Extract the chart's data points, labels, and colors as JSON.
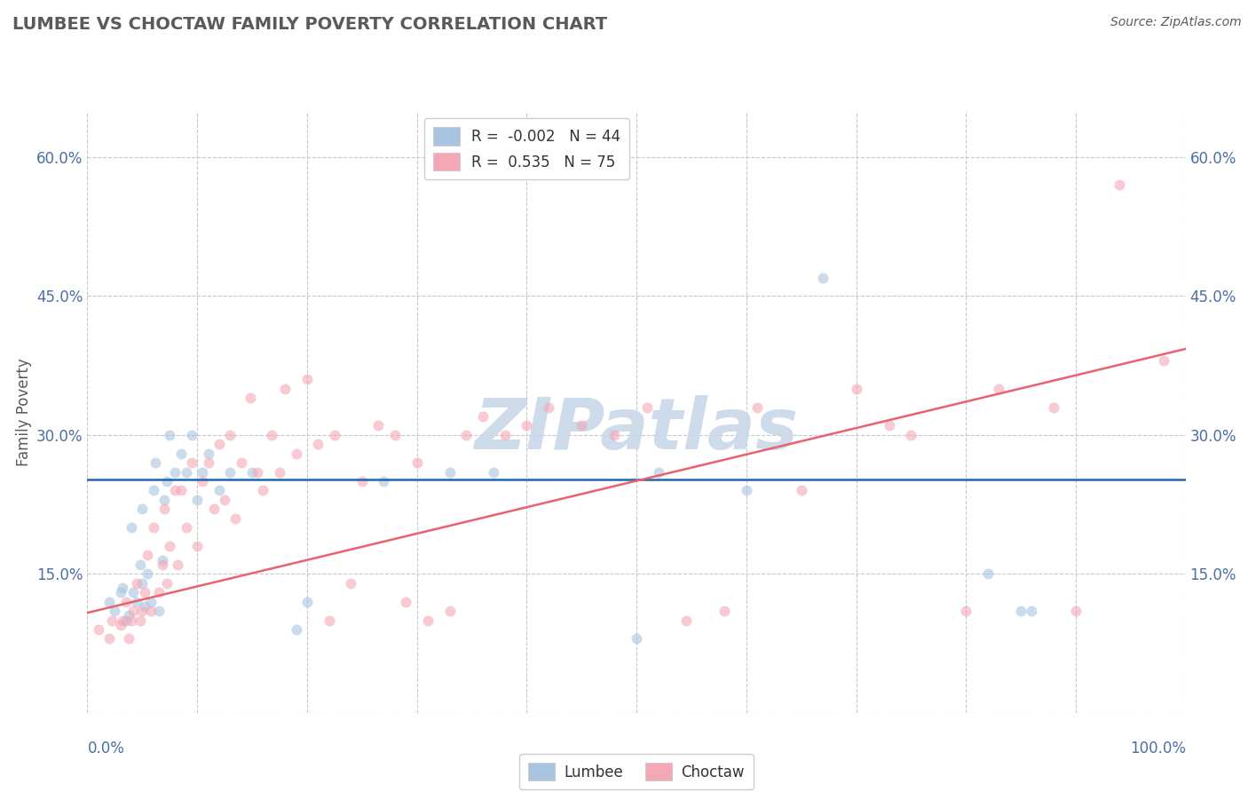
{
  "title": "LUMBEE VS CHOCTAW FAMILY POVERTY CORRELATION CHART",
  "source": "Source: ZipAtlas.com",
  "ylabel": "Family Poverty",
  "xlim": [
    0.0,
    1.0
  ],
  "ylim": [
    0.0,
    0.65
  ],
  "yticks": [
    0.0,
    0.15,
    0.3,
    0.45,
    0.6
  ],
  "ytick_labels_left": [
    "",
    "15.0%",
    "30.0%",
    "45.0%",
    "60.0%"
  ],
  "ytick_labels_right": [
    "",
    "15.0%",
    "30.0%",
    "45.0%",
    "60.0%"
  ],
  "xtick_left_label": "0.0%",
  "xtick_right_label": "100.0%",
  "lumbee_R": -0.002,
  "lumbee_N": 44,
  "choctaw_R": 0.535,
  "choctaw_N": 75,
  "lumbee_color": "#a8c4e0",
  "choctaw_color": "#f4a7b5",
  "lumbee_line_color": "#2166ac",
  "choctaw_line_color": "#e8636e",
  "background_color": "#ffffff",
  "grid_color": "#c8c8c8",
  "watermark_color": "#c8d8e8",
  "title_color": "#5a5a5a",
  "source_color": "#5a5a5a",
  "axis_label_color": "#5a5a5a",
  "tick_color": "#4a6fa5",
  "lumbee_line_y_intercept": 0.252,
  "lumbee_line_slope": 0.0,
  "choctaw_line_y_intercept": 0.108,
  "choctaw_line_slope": 0.285,
  "lumbee_x": [
    0.02,
    0.025,
    0.03,
    0.032,
    0.035,
    0.038,
    0.04,
    0.042,
    0.045,
    0.048,
    0.05,
    0.05,
    0.052,
    0.055,
    0.058,
    0.06,
    0.062,
    0.065,
    0.068,
    0.07,
    0.072,
    0.075,
    0.08,
    0.085,
    0.09,
    0.095,
    0.1,
    0.105,
    0.11,
    0.12,
    0.13,
    0.15,
    0.19,
    0.2,
    0.27,
    0.33,
    0.37,
    0.5,
    0.52,
    0.6,
    0.67,
    0.82,
    0.85,
    0.86
  ],
  "lumbee_y": [
    0.12,
    0.11,
    0.13,
    0.135,
    0.1,
    0.105,
    0.2,
    0.13,
    0.12,
    0.16,
    0.14,
    0.22,
    0.115,
    0.15,
    0.12,
    0.24,
    0.27,
    0.11,
    0.165,
    0.23,
    0.25,
    0.3,
    0.26,
    0.28,
    0.26,
    0.3,
    0.23,
    0.26,
    0.28,
    0.24,
    0.26,
    0.26,
    0.09,
    0.12,
    0.25,
    0.26,
    0.26,
    0.08,
    0.26,
    0.24,
    0.47,
    0.15,
    0.11,
    0.11
  ],
  "choctaw_x": [
    0.01,
    0.02,
    0.022,
    0.03,
    0.032,
    0.035,
    0.038,
    0.04,
    0.042,
    0.045,
    0.048,
    0.05,
    0.052,
    0.055,
    0.058,
    0.06,
    0.065,
    0.068,
    0.07,
    0.072,
    0.075,
    0.08,
    0.082,
    0.085,
    0.09,
    0.095,
    0.1,
    0.105,
    0.11,
    0.115,
    0.12,
    0.125,
    0.13,
    0.135,
    0.14,
    0.148,
    0.155,
    0.16,
    0.168,
    0.175,
    0.18,
    0.19,
    0.2,
    0.21,
    0.22,
    0.225,
    0.24,
    0.25,
    0.265,
    0.28,
    0.29,
    0.3,
    0.31,
    0.33,
    0.345,
    0.36,
    0.38,
    0.4,
    0.42,
    0.45,
    0.48,
    0.51,
    0.545,
    0.58,
    0.61,
    0.65,
    0.7,
    0.73,
    0.75,
    0.8,
    0.83,
    0.88,
    0.9,
    0.94,
    0.98
  ],
  "choctaw_y": [
    0.09,
    0.08,
    0.1,
    0.095,
    0.1,
    0.12,
    0.08,
    0.1,
    0.11,
    0.14,
    0.1,
    0.11,
    0.13,
    0.17,
    0.11,
    0.2,
    0.13,
    0.16,
    0.22,
    0.14,
    0.18,
    0.24,
    0.16,
    0.24,
    0.2,
    0.27,
    0.18,
    0.25,
    0.27,
    0.22,
    0.29,
    0.23,
    0.3,
    0.21,
    0.27,
    0.34,
    0.26,
    0.24,
    0.3,
    0.26,
    0.35,
    0.28,
    0.36,
    0.29,
    0.1,
    0.3,
    0.14,
    0.25,
    0.31,
    0.3,
    0.12,
    0.27,
    0.1,
    0.11,
    0.3,
    0.32,
    0.3,
    0.31,
    0.33,
    0.31,
    0.3,
    0.33,
    0.1,
    0.11,
    0.33,
    0.24,
    0.35,
    0.31,
    0.3,
    0.11,
    0.35,
    0.33,
    0.11,
    0.57,
    0.38
  ],
  "marker_size": 75,
  "marker_alpha": 0.6,
  "figsize": [
    14.06,
    8.92
  ],
  "dpi": 100
}
